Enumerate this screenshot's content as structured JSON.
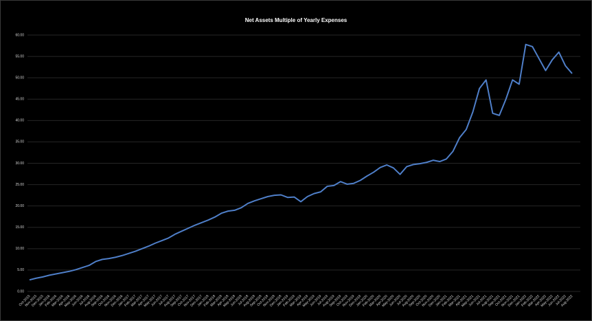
{
  "chart_data": {
    "type": "line",
    "title": "Net Assets Multiple of Yearly Expenses",
    "categories": [
      "Oct-2015",
      "Nov-2015",
      "Dec-2015",
      "Jan-2016",
      "Feb-2016",
      "Mar-2016",
      "Apr-2016",
      "May-2016",
      "Jun-2016",
      "Jul-2016",
      "Aug-2016",
      "Sep-2016",
      "Oct-2016",
      "Nov-2016",
      "Dec-2016",
      "Jan-2017",
      "Feb-2017",
      "Mar-2017",
      "Apr-2017",
      "May-2017",
      "Jun-2017",
      "Jul-2017",
      "Aug-2017",
      "Sep-2017",
      "Oct-2017",
      "Nov-2017",
      "Dec-2017",
      "Jan-2018",
      "Feb-2018",
      "Mar-2018",
      "Apr-2018",
      "May-2018",
      "Jun-2018",
      "Jul-2018",
      "Aug-2018",
      "Sep-2018",
      "Oct-2018",
      "Nov-2018",
      "Dec-2018",
      "Jan-2019",
      "Feb-2019",
      "Mar-2019",
      "Apr-2019",
      "May-2019",
      "Jun-2019",
      "Jul-2019",
      "Aug-2019",
      "Sep-2019",
      "Oct-2019",
      "Nov-2019",
      "Dec-2019",
      "Jan-2020",
      "Feb-2020",
      "Mar-2020",
      "Apr-2020",
      "May-2020",
      "Jun-2020",
      "Jul-2020",
      "Aug-2020",
      "Sep-2020",
      "Oct-2020",
      "Nov-2020",
      "Dec-2020",
      "Jan-2021",
      "Feb-2021",
      "Mar-2021",
      "Apr-2021",
      "May-2021",
      "Jun-2021",
      "Jul-2021",
      "Aug-2021",
      "Sep-2021",
      "Oct-2021",
      "Nov-2021",
      "Dec-2021",
      "Jan-2022",
      "Feb-2022",
      "Mar-2022",
      "Apr-2022",
      "May-2022",
      "Jun-2022",
      "Jul-2022",
      "Aug-2022"
    ],
    "values": [
      2.7,
      3.1,
      3.4,
      3.8,
      4.1,
      4.4,
      4.7,
      5.1,
      5.6,
      6.1,
      7.0,
      7.5,
      7.7,
      8.0,
      8.4,
      8.9,
      9.4,
      10.0,
      10.6,
      11.3,
      11.9,
      12.5,
      13.4,
      14.1,
      14.8,
      15.5,
      16.1,
      16.7,
      17.4,
      18.3,
      18.8,
      19.0,
      19.6,
      20.6,
      21.2,
      21.7,
      22.2,
      22.5,
      22.6,
      22.0,
      22.1,
      21.0,
      22.2,
      22.9,
      23.3,
      24.6,
      24.8,
      25.7,
      25.1,
      25.3,
      26.0,
      27.0,
      27.9,
      29.0,
      29.6,
      28.9,
      27.4,
      29.2,
      29.7,
      29.9,
      30.2,
      30.7,
      30.4,
      31.0,
      32.8,
      36.0,
      37.9,
      42.0,
      47.5,
      49.5,
      41.7,
      41.2,
      45.0,
      49.5,
      48.5,
      57.8,
      57.3,
      54.5,
      51.7,
      54.2,
      56.0,
      52.8,
      51.0
    ],
    "color": "#4f7fc9",
    "ylim": [
      0,
      60
    ],
    "yticks": [
      {
        "value": 0,
        "label": "0.00"
      },
      {
        "value": 5,
        "label": "5.00"
      },
      {
        "value": 10,
        "label": "10.00"
      },
      {
        "value": 15,
        "label": "15.00"
      },
      {
        "value": 20,
        "label": "20.00"
      },
      {
        "value": 25,
        "label": "25.00"
      },
      {
        "value": 30,
        "label": "30.00"
      },
      {
        "value": 35,
        "label": "35.00"
      },
      {
        "value": 40,
        "label": "40.00"
      },
      {
        "value": 45,
        "label": "45.00"
      },
      {
        "value": 50,
        "label": "50.00"
      },
      {
        "value": 55,
        "label": "55.00"
      },
      {
        "value": 60,
        "label": "60.00"
      }
    ],
    "grid": true
  }
}
